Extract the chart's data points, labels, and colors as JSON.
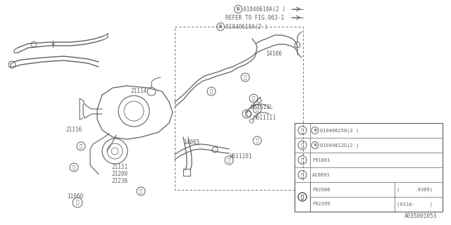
{
  "bg_color": "#ffffff",
  "lc": "#606060",
  "footer": "A035001053",
  "ref1": "B 01040610A(2 )",
  "ref2": "REFER TO FIG.063-1",
  "ref3": "B 01040610A(2 )",
  "label_14166": "14166",
  "label_21114": "21114",
  "label_21116": "21116",
  "label_21111": "21111",
  "label_21200": "21200",
  "label_21236": "21236",
  "label_11060": "11060",
  "label_14065": "14065",
  "label_H61513L": "H61513L",
  "label_H611111": "H611111",
  "label_H611101": "H611101",
  "table_rows": [
    [
      "1",
      "B 010406250(2 )",
      ""
    ],
    [
      "2",
      "B 01040812G(2 )",
      ""
    ],
    [
      "3",
      "F91801",
      ""
    ],
    [
      "4",
      "A10693",
      ""
    ],
    [
      "5",
      "F92006",
      "(     -9309)"
    ],
    [
      "5",
      "F92209",
      "(9310-     )"
    ]
  ],
  "ff": "monospace",
  "fs": 5.5
}
